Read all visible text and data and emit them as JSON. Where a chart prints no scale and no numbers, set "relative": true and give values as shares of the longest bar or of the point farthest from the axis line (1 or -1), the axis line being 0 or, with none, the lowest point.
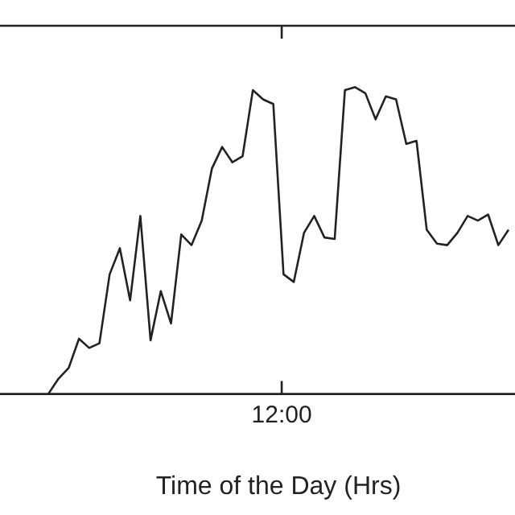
{
  "chart_data": {
    "type": "line",
    "xlabel": "Time of the Day (Hrs)",
    "relative": true,
    "annotations": [
      "12:00"
    ],
    "grid": false,
    "legend": false,
    "marker": "none",
    "line_style": "solid",
    "categories": [
      null,
      null,
      null,
      null,
      null,
      null,
      null,
      null,
      null,
      null,
      null,
      null,
      null,
      null,
      null,
      null,
      null,
      null,
      null,
      null,
      null,
      null,
      null,
      null,
      null,
      null,
      null,
      null,
      null,
      null,
      null,
      null,
      null,
      null,
      null,
      null,
      null,
      null,
      null,
      null,
      null,
      null,
      null,
      null,
      null,
      null
    ],
    "series": [
      {
        "color": "#222222",
        "values": [
          0,
          0.05,
          0.085,
          0.18,
          0.15,
          0.165,
          0.39,
          0.475,
          0.305,
          0.58,
          0.175,
          0.335,
          0.23,
          0.52,
          0.485,
          0.565,
          0.735,
          0.805,
          0.755,
          0.775,
          0.99,
          0.96,
          0.945,
          0.39,
          0.365,
          0.525,
          0.58,
          0.51,
          0.505,
          0.99,
          1,
          0.98,
          0.895,
          0.97,
          0.96,
          0.815,
          0.825,
          0.535,
          0.49,
          0.485,
          0.525,
          0.58,
          0.565,
          0.585,
          0.485,
          0.535
        ]
      }
    ]
  }
}
